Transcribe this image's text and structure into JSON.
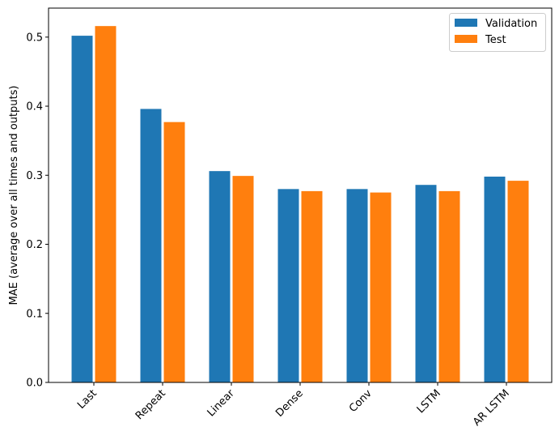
{
  "chart_data": {
    "type": "bar",
    "title": "",
    "xlabel": "",
    "ylabel": "MAE (average over all times and outputs)",
    "categories": [
      "Last",
      "Repeat",
      "Linear",
      "Dense",
      "Conv",
      "LSTM",
      "AR LSTM"
    ],
    "series": [
      {
        "name": "Validation",
        "color": "#1f77b4",
        "values": [
          0.502,
          0.396,
          0.306,
          0.28,
          0.28,
          0.286,
          0.298
        ]
      },
      {
        "name": "Test",
        "color": "#ff7f0e",
        "values": [
          0.516,
          0.377,
          0.299,
          0.277,
          0.275,
          0.277,
          0.292
        ]
      }
    ],
    "yticks": [
      "0.0",
      "0.1",
      "0.2",
      "0.3",
      "0.4",
      "0.5"
    ],
    "ylim": [
      0,
      0.542
    ],
    "grid": false,
    "legend": "top-right",
    "xtick_rotation": 45
  }
}
